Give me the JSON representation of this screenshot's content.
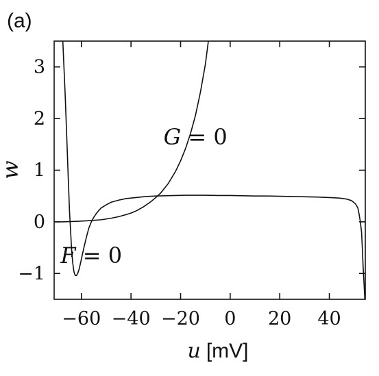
{
  "panel_label": "(a)",
  "chart_data": {
    "type": "line",
    "xlabel_var": "u",
    "xlabel_unit": "[mV]",
    "ylabel": "w",
    "xlim": [
      -71,
      54.5
    ],
    "ylim": [
      -1.5,
      3.5
    ],
    "x_ticks": [
      -60,
      -40,
      -20,
      0,
      20,
      40
    ],
    "y_ticks": [
      -1,
      0,
      1,
      2,
      3
    ],
    "x_tick_labels": [
      "−60",
      "−40",
      "−20",
      "0",
      "20",
      "40"
    ],
    "y_tick_labels": [
      "−1",
      "0",
      "1",
      "2",
      "3"
    ],
    "grid": false,
    "annotations": [
      {
        "text": "G = 0",
        "x": -14,
        "y": 1.5
      },
      {
        "text": "F = 0",
        "x": -56,
        "y": -0.8
      }
    ],
    "series": [
      {
        "name": "F = 0",
        "x": [
          -67.5,
          -66.5,
          -65.5,
          -64.8,
          -64,
          -63.5,
          -63,
          -62.5,
          -62,
          -61.5,
          -61,
          -60.5,
          -60,
          -59,
          -58,
          -57,
          -56,
          -55,
          -54,
          -53,
          -52,
          -50,
          -48,
          -45,
          -42,
          -38,
          -34,
          -30,
          -26,
          -22,
          -18,
          -14,
          -10,
          -5,
          0,
          5,
          10,
          15,
          20,
          25,
          30,
          35,
          40,
          44,
          47,
          49,
          50.5,
          51.5,
          52,
          52.5,
          53,
          53.3,
          53.6,
          54,
          54.3
        ],
        "y": [
          3.5,
          2.4,
          1.1,
          0.2,
          -0.5,
          -0.8,
          -0.97,
          -1.04,
          -1.04,
          -1.0,
          -0.93,
          -0.83,
          -0.72,
          -0.5,
          -0.3,
          -0.12,
          0.0,
          0.09,
          0.16,
          0.22,
          0.27,
          0.33,
          0.38,
          0.42,
          0.45,
          0.47,
          0.49,
          0.5,
          0.505,
          0.51,
          0.515,
          0.515,
          0.515,
          0.51,
          0.51,
          0.505,
          0.5,
          0.5,
          0.495,
          0.49,
          0.485,
          0.48,
          0.47,
          0.46,
          0.44,
          0.41,
          0.35,
          0.27,
          0.15,
          0.0,
          -0.2,
          -0.5,
          -0.85,
          -1.2,
          -1.5
        ]
      },
      {
        "name": "G = 0",
        "x": [
          -71,
          -68,
          -65,
          -62,
          -60,
          -58,
          -55,
          -52,
          -50,
          -48,
          -45,
          -42,
          -40,
          -38,
          -35,
          -32,
          -30,
          -28,
          -25,
          -22,
          -20,
          -18,
          -16,
          -14,
          -12,
          -10,
          -8.8
        ],
        "y": [
          0.0,
          0.0,
          0.005,
          0.01,
          0.015,
          0.02,
          0.03,
          0.04,
          0.055,
          0.07,
          0.1,
          0.14,
          0.17,
          0.21,
          0.29,
          0.39,
          0.47,
          0.56,
          0.74,
          0.98,
          1.18,
          1.42,
          1.71,
          2.06,
          2.51,
          3.05,
          3.5
        ]
      }
    ]
  }
}
